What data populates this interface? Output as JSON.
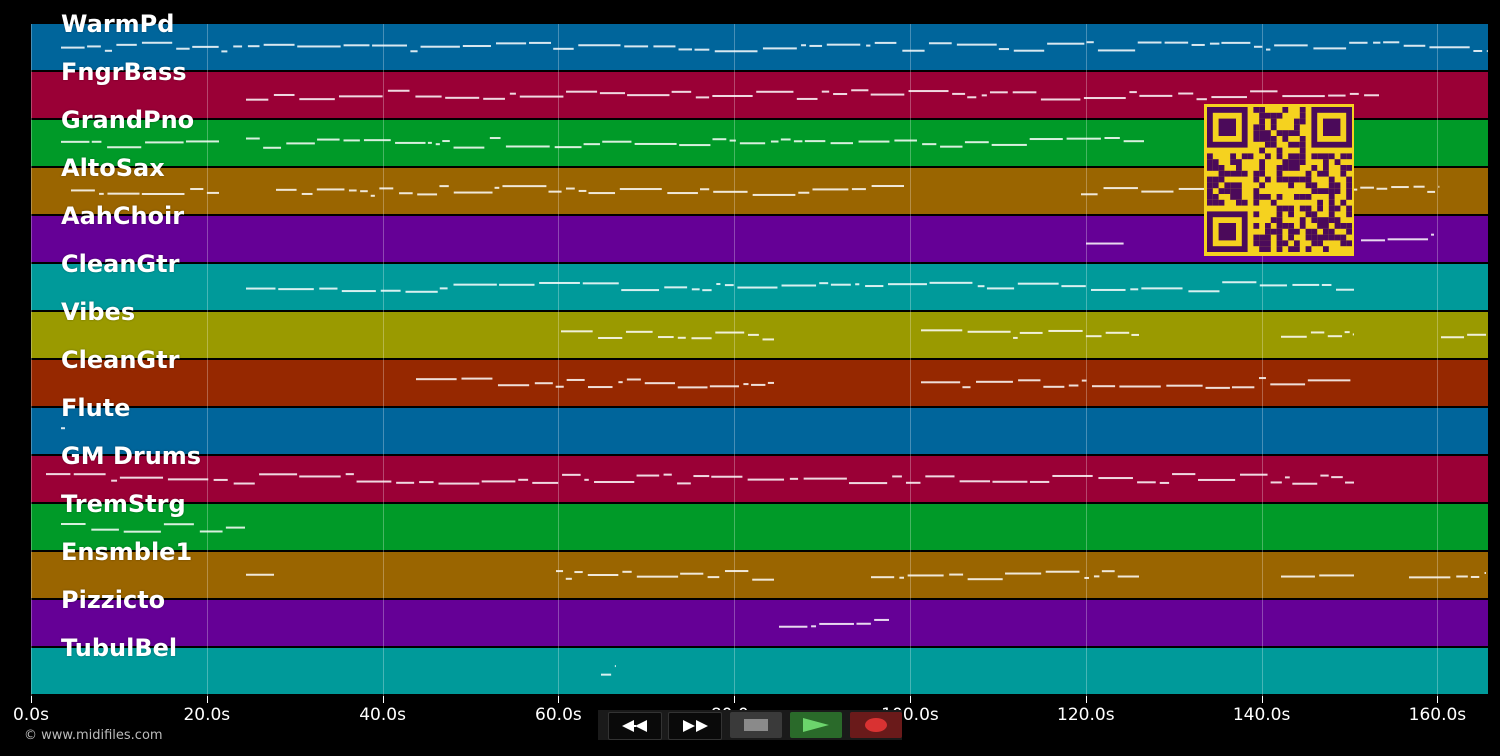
{
  "tracks": [
    {
      "name": "WarmPd",
      "color": "#00659b"
    },
    {
      "name": "FngrBass",
      "color": "#9a0036"
    },
    {
      "name": "GrandPno",
      "color": "#009a28"
    },
    {
      "name": "AltoSax",
      "color": "#9a6500"
    },
    {
      "name": "AahChoir",
      "color": "#650096"
    },
    {
      "name": "CleanGtr",
      "color": "#009a9a"
    },
    {
      "name": "Vibes",
      "color": "#9a9a00"
    },
    {
      "name": "CleanGtr",
      "color": "#962800"
    },
    {
      "name": "Flute",
      "color": "#00659b"
    },
    {
      "name": "GM Drums",
      "color": "#9a0036"
    },
    {
      "name": "TremStrg",
      "color": "#009a28"
    },
    {
      "name": "Ensmble1",
      "color": "#9a6500"
    },
    {
      "name": "Pizzicto",
      "color": "#650096"
    },
    {
      "name": "TubulBel",
      "color": "#009a9a"
    }
  ],
  "timeline": {
    "ticks": [
      "0.0s",
      "20.0s",
      "40.0s",
      "60.0s",
      "80.0s",
      "100.0s",
      "120.0s",
      "140.0s",
      "160.0s"
    ],
    "tick_values": [
      0,
      20,
      40,
      60,
      80,
      100,
      120,
      140,
      160
    ],
    "duration_seconds": 165.8
  },
  "transport": {
    "rewind_icon": "rewind-icon",
    "forward_icon": "fast-forward-icon",
    "stop_icon": "stop-icon",
    "play_icon": "play-icon",
    "record_icon": "record-icon",
    "colors": {
      "stop": "#888888",
      "play": "#5ccb5c",
      "record": "#d93232"
    }
  },
  "copyright": "© www.midifiles.com",
  "qr": {
    "icon": "qr-code-icon",
    "fg": "#4b0a5a",
    "bg": "#f5d21f"
  }
}
